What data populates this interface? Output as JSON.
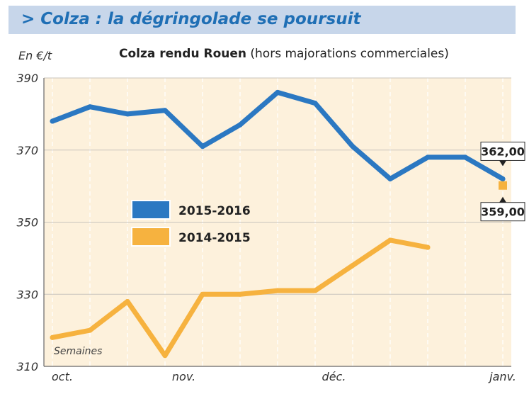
{
  "header": {
    "title": "> Colza : la dégringolade se poursuit"
  },
  "chart_data": {
    "type": "line",
    "title": "Colza rendu Rouen",
    "subtitle": "(hors majorations commerciales)",
    "ylabel": "En €/t",
    "xlabel": "Semaines",
    "ylim": [
      310,
      390
    ],
    "yticks": [
      310,
      330,
      350,
      370,
      390
    ],
    "ytick_labels": [
      "310",
      "330",
      "350",
      "370",
      "390"
    ],
    "x_tick_labels": [
      "oct.",
      "nov.",
      "déc.",
      "janv."
    ],
    "x_tick_positions": [
      0,
      3.5,
      7.5,
      12
    ],
    "grid": true,
    "legend": "center-left",
    "series": [
      {
        "name": "2015-2016",
        "color": "#2b78c2",
        "x": [
          0,
          1,
          2,
          3,
          4,
          5,
          6,
          7,
          8,
          9,
          10,
          11,
          12
        ],
        "values": [
          378,
          382,
          380,
          381,
          371,
          377,
          386,
          383,
          371,
          362,
          368,
          368,
          362
        ]
      },
      {
        "name": "2014-2015",
        "color": "#f6b23f",
        "x": [
          0,
          1,
          2,
          3,
          4,
          5,
          6,
          7,
          8,
          9,
          10
        ],
        "values": [
          318,
          320,
          328,
          313,
          330,
          330,
          331,
          331,
          338,
          345,
          343
        ]
      }
    ],
    "annotations": [
      {
        "text": "362,00",
        "x": 12,
        "y": 362,
        "direction": "down"
      },
      {
        "text": "359,00",
        "x": 12,
        "y": 359,
        "direction": "up"
      }
    ]
  }
}
